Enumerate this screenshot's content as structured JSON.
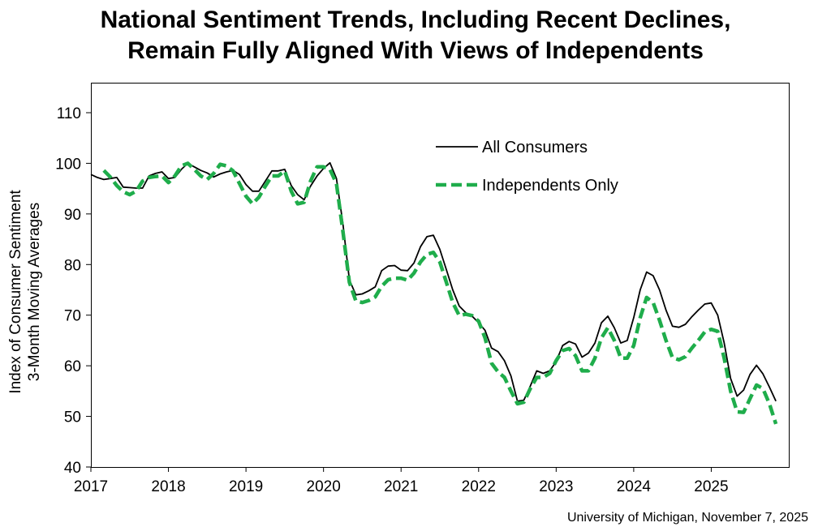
{
  "chart_data": {
    "type": "line",
    "title_line1": "National Sentiment Trends, Including Recent Declines,",
    "title_line2": "Remain Fully Aligned With Views of Independents",
    "ylabel_line1": "Index of Consumer Sentiment",
    "ylabel_line2": "3-Month Moving Averages",
    "xlabel": "",
    "ylim": [
      40,
      110
    ],
    "yticks": [
      40,
      50,
      60,
      70,
      80,
      90,
      100,
      110
    ],
    "xlim": [
      "2017-01",
      "2025-12"
    ],
    "xticks": [
      "2017",
      "2018",
      "2019",
      "2020",
      "2021",
      "2022",
      "2023",
      "2024",
      "2025"
    ],
    "grid": false,
    "legend_position": "top-right",
    "source": "University of Michigan, November 7, 2025",
    "series": [
      {
        "name": "All Consumers",
        "color": "#000000",
        "style": "solid",
        "points": [
          [
            "2017-01",
            97.8
          ],
          [
            "2017-02",
            97.2
          ],
          [
            "2017-03",
            96.8
          ],
          [
            "2017-04",
            97.0
          ],
          [
            "2017-05",
            97.2
          ],
          [
            "2017-06",
            95.3
          ],
          [
            "2017-07",
            95.2
          ],
          [
            "2017-08",
            95.1
          ],
          [
            "2017-09",
            95.1
          ],
          [
            "2017-10",
            97.5
          ],
          [
            "2017-11",
            98.0
          ],
          [
            "2017-12",
            98.3
          ],
          [
            "2018-01",
            97.0
          ],
          [
            "2018-02",
            97.2
          ],
          [
            "2018-03",
            98.8
          ],
          [
            "2018-04",
            100.0
          ],
          [
            "2018-05",
            99.3
          ],
          [
            "2018-06",
            98.6
          ],
          [
            "2018-07",
            98.1
          ],
          [
            "2018-08",
            97.3
          ],
          [
            "2018-09",
            97.9
          ],
          [
            "2018-10",
            98.3
          ],
          [
            "2018-11",
            98.6
          ],
          [
            "2018-12",
            97.8
          ],
          [
            "2019-01",
            95.8
          ],
          [
            "2019-02",
            94.5
          ],
          [
            "2019-03",
            94.5
          ],
          [
            "2019-04",
            96.5
          ],
          [
            "2019-05",
            98.5
          ],
          [
            "2019-06",
            98.5
          ],
          [
            "2019-07",
            98.8
          ],
          [
            "2019-08",
            95.6
          ],
          [
            "2019-09",
            93.8
          ],
          [
            "2019-10",
            92.8
          ],
          [
            "2019-11",
            95.5
          ],
          [
            "2019-12",
            97.5
          ],
          [
            "2020-01",
            99.0
          ],
          [
            "2020-02",
            100.1
          ],
          [
            "2020-03",
            97.0
          ],
          [
            "2020-04",
            88.0
          ],
          [
            "2020-05",
            77.0
          ],
          [
            "2020-06",
            74.0
          ],
          [
            "2020-07",
            74.2
          ],
          [
            "2020-08",
            74.8
          ],
          [
            "2020-09",
            75.6
          ],
          [
            "2020-10",
            78.8
          ],
          [
            "2020-11",
            79.7
          ],
          [
            "2020-12",
            79.8
          ],
          [
            "2021-01",
            78.9
          ],
          [
            "2021-02",
            78.8
          ],
          [
            "2021-03",
            80.3
          ],
          [
            "2021-04",
            83.5
          ],
          [
            "2021-05",
            85.5
          ],
          [
            "2021-06",
            85.8
          ],
          [
            "2021-07",
            83.0
          ],
          [
            "2021-08",
            79.0
          ],
          [
            "2021-09",
            75.0
          ],
          [
            "2021-10",
            71.8
          ],
          [
            "2021-11",
            70.5
          ],
          [
            "2021-12",
            69.8
          ],
          [
            "2022-01",
            68.5
          ],
          [
            "2022-02",
            67.0
          ],
          [
            "2022-03",
            63.5
          ],
          [
            "2022-04",
            62.8
          ],
          [
            "2022-05",
            61.0
          ],
          [
            "2022-06",
            58.0
          ],
          [
            "2022-07",
            53.0
          ],
          [
            "2022-08",
            53.2
          ],
          [
            "2022-09",
            56.0
          ],
          [
            "2022-10",
            59.0
          ],
          [
            "2022-11",
            58.5
          ],
          [
            "2022-12",
            59.0
          ],
          [
            "2023-01",
            60.8
          ],
          [
            "2023-02",
            64.0
          ],
          [
            "2023-03",
            64.8
          ],
          [
            "2023-04",
            64.3
          ],
          [
            "2023-05",
            61.7
          ],
          [
            "2023-06",
            62.5
          ],
          [
            "2023-07",
            64.5
          ],
          [
            "2023-08",
            68.5
          ],
          [
            "2023-09",
            69.8
          ],
          [
            "2023-10",
            67.5
          ],
          [
            "2023-11",
            64.5
          ],
          [
            "2023-12",
            65.0
          ],
          [
            "2024-01",
            69.5
          ],
          [
            "2024-02",
            75.0
          ],
          [
            "2024-03",
            78.5
          ],
          [
            "2024-04",
            77.8
          ],
          [
            "2024-05",
            75.0
          ],
          [
            "2024-06",
            71.0
          ],
          [
            "2024-07",
            67.8
          ],
          [
            "2024-08",
            67.6
          ],
          [
            "2024-09",
            68.2
          ],
          [
            "2024-10",
            69.7
          ],
          [
            "2024-11",
            71.0
          ],
          [
            "2024-12",
            72.2
          ],
          [
            "2025-01",
            72.4
          ],
          [
            "2025-02",
            70.0
          ],
          [
            "2025-03",
            64.5
          ],
          [
            "2025-04",
            57.5
          ],
          [
            "2025-05",
            54.0
          ],
          [
            "2025-06",
            55.2
          ],
          [
            "2025-07",
            58.3
          ],
          [
            "2025-08",
            60.1
          ],
          [
            "2025-09",
            58.4
          ],
          [
            "2025-10",
            55.8
          ],
          [
            "2025-11",
            53.0
          ]
        ]
      },
      {
        "name": "Independents Only",
        "color": "#1fad4b",
        "style": "dashed",
        "points": [
          [
            "2017-03",
            98.6
          ],
          [
            "2017-04",
            97.3
          ],
          [
            "2017-05",
            95.6
          ],
          [
            "2017-06",
            94.4
          ],
          [
            "2017-07",
            93.8
          ],
          [
            "2017-08",
            94.5
          ],
          [
            "2017-09",
            96.5
          ],
          [
            "2017-10",
            97.2
          ],
          [
            "2017-11",
            97.4
          ],
          [
            "2017-12",
            97.5
          ],
          [
            "2018-01",
            96.2
          ],
          [
            "2018-02",
            97.5
          ],
          [
            "2018-03",
            99.5
          ],
          [
            "2018-04",
            100.0
          ],
          [
            "2018-05",
            98.8
          ],
          [
            "2018-06",
            97.5
          ],
          [
            "2018-07",
            96.8
          ],
          [
            "2018-08",
            98.0
          ],
          [
            "2018-09",
            99.8
          ],
          [
            "2018-10",
            99.5
          ],
          [
            "2018-11",
            98.5
          ],
          [
            "2018-12",
            96.0
          ],
          [
            "2019-01",
            93.5
          ],
          [
            "2019-02",
            92.0
          ],
          [
            "2019-03",
            93.3
          ],
          [
            "2019-04",
            95.5
          ],
          [
            "2019-05",
            97.5
          ],
          [
            "2019-06",
            97.5
          ],
          [
            "2019-07",
            98.5
          ],
          [
            "2019-08",
            94.5
          ],
          [
            "2019-09",
            92.0
          ],
          [
            "2019-10",
            92.3
          ],
          [
            "2019-11",
            96.5
          ],
          [
            "2019-12",
            99.3
          ],
          [
            "2020-01",
            99.3
          ],
          [
            "2020-02",
            98.8
          ],
          [
            "2020-03",
            96.0
          ],
          [
            "2020-04",
            86.5
          ],
          [
            "2020-05",
            76.5
          ],
          [
            "2020-06",
            72.8
          ],
          [
            "2020-07",
            72.5
          ],
          [
            "2020-08",
            72.9
          ],
          [
            "2020-09",
            73.6
          ],
          [
            "2020-10",
            75.7
          ],
          [
            "2020-11",
            77.0
          ],
          [
            "2020-12",
            77.3
          ],
          [
            "2021-01",
            77.3
          ],
          [
            "2021-02",
            76.9
          ],
          [
            "2021-03",
            78.3
          ],
          [
            "2021-04",
            80.5
          ],
          [
            "2021-05",
            82.0
          ],
          [
            "2021-06",
            82.4
          ],
          [
            "2021-07",
            80.5
          ],
          [
            "2021-08",
            76.5
          ],
          [
            "2021-09",
            72.5
          ],
          [
            "2021-10",
            69.9
          ],
          [
            "2021-11",
            70.2
          ],
          [
            "2021-12",
            69.9
          ],
          [
            "2022-01",
            68.8
          ],
          [
            "2022-02",
            65.5
          ],
          [
            "2022-03",
            60.5
          ],
          [
            "2022-04",
            58.8
          ],
          [
            "2022-05",
            57.7
          ],
          [
            "2022-06",
            55.0
          ],
          [
            "2022-07",
            52.5
          ],
          [
            "2022-08",
            52.8
          ],
          [
            "2022-09",
            55.5
          ],
          [
            "2022-10",
            57.7
          ],
          [
            "2022-11",
            57.7
          ],
          [
            "2022-12",
            58.5
          ],
          [
            "2023-01",
            61.0
          ],
          [
            "2023-02",
            63.0
          ],
          [
            "2023-03",
            63.4
          ],
          [
            "2023-04",
            62.0
          ],
          [
            "2023-05",
            59.0
          ],
          [
            "2023-06",
            59.0
          ],
          [
            "2023-07",
            61.5
          ],
          [
            "2023-08",
            65.5
          ],
          [
            "2023-09",
            67.5
          ],
          [
            "2023-10",
            65.0
          ],
          [
            "2023-11",
            61.5
          ],
          [
            "2023-12",
            61.5
          ],
          [
            "2024-01",
            64.0
          ],
          [
            "2024-02",
            69.5
          ],
          [
            "2024-03",
            73.5
          ],
          [
            "2024-04",
            72.5
          ],
          [
            "2024-05",
            69.0
          ],
          [
            "2024-06",
            65.0
          ],
          [
            "2024-07",
            61.6
          ],
          [
            "2024-08",
            61.2
          ],
          [
            "2024-09",
            61.8
          ],
          [
            "2024-10",
            63.5
          ],
          [
            "2024-11",
            65.0
          ],
          [
            "2024-12",
            66.7
          ],
          [
            "2025-01",
            67.2
          ],
          [
            "2025-02",
            66.8
          ],
          [
            "2025-03",
            61.5
          ],
          [
            "2025-04",
            55.0
          ],
          [
            "2025-05",
            50.9
          ],
          [
            "2025-06",
            50.8
          ],
          [
            "2025-07",
            53.5
          ],
          [
            "2025-08",
            56.2
          ],
          [
            "2025-09",
            55.5
          ],
          [
            "2025-10",
            52.5
          ],
          [
            "2025-11",
            48.5
          ]
        ]
      }
    ]
  }
}
